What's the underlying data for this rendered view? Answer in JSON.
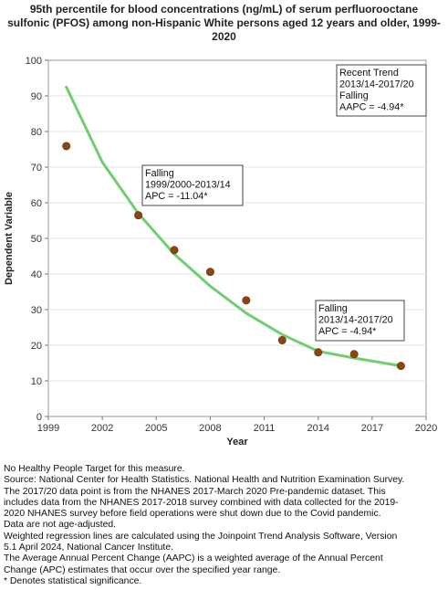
{
  "chart_data": {
    "type": "line",
    "title_lines": [
      "95th percentile for blood concentrations (ng/mL) of serum perfluorooctane",
      "sulfonic (PFOS) among non-Hispanic White persons aged 12 years and older, 1999-",
      "2020"
    ],
    "xlabel": "Year",
    "ylabel": "Dependent Variable",
    "xlim": [
      1999,
      2020
    ],
    "ylim": [
      0,
      100
    ],
    "x_ticks": [
      "1999",
      "2002",
      "2005",
      "2008",
      "2011",
      "2014",
      "2017",
      "2020"
    ],
    "y_ticks": [
      "0",
      "10",
      "20",
      "30",
      "40",
      "50",
      "60",
      "70",
      "80",
      "90",
      "100"
    ],
    "observed_color": "#8B4513",
    "trend_color": "#6fcf6f",
    "series": [
      {
        "kind": "observed",
        "points": [
          {
            "x": 2000,
            "y": 75.9
          },
          {
            "x": 2004,
            "y": 56.5
          },
          {
            "x": 2006,
            "y": 46.7
          },
          {
            "x": 2008,
            "y": 40.6
          },
          {
            "x": 2010,
            "y": 32.6
          },
          {
            "x": 2012,
            "y": 21.4
          },
          {
            "x": 2014,
            "y": 18.0
          },
          {
            "x": 2016,
            "y": 17.5
          },
          {
            "x": 2018.6,
            "y": 14.2
          }
        ]
      },
      {
        "kind": "trend",
        "points": [
          {
            "x": 2000,
            "y": 92.5
          },
          {
            "x": 2002,
            "y": 71.4
          },
          {
            "x": 2004,
            "y": 57.0
          },
          {
            "x": 2006,
            "y": 45.6
          },
          {
            "x": 2008,
            "y": 36.6
          },
          {
            "x": 2010,
            "y": 29.0
          },
          {
            "x": 2012,
            "y": 23.0
          },
          {
            "x": 2014,
            "y": 18.3
          },
          {
            "x": 2016,
            "y": 16.4
          },
          {
            "x": 2018.6,
            "y": 14.2
          }
        ]
      }
    ],
    "annotations": [
      {
        "lines": [
          "Recent Trend",
          "2013/14-2017/20",
          "Falling",
          "AAPC = -4.94*"
        ]
      },
      {
        "lines": [
          "Falling",
          "1999/2000-2013/14",
          "APC = -11.04*"
        ]
      },
      {
        "lines": [
          "Falling",
          "2013/14-2017/20",
          "APC = -4.94*"
        ]
      }
    ]
  },
  "footnotes": [
    "No Healthy People Target for this measure.",
    "Source: National Center for Health Statistics. National Health and Nutrition Examination Survey.",
    "The 2017/20 data point is from the NHANES 2017-March 2020 Pre-pandemic dataset. This",
    "includes data from the NHANES 2017-2018 survey combined with data collected for the 2019-",
    "2020 NHANES survey before field operations were shut down due to the Covid pandemic.",
    "Data are not age-adjusted.",
    "Weighted regression lines are calculated using the Joinpoint Trend Analysis Software, Version",
    "5.1 April 2024, National Cancer Institute.",
    "The Average Annual Percent Change (AAPC) is a weighted average of the Annual Percent",
    "Change (APC) estimates that occur over the specified year range.",
    "* Denotes statistical significance."
  ]
}
